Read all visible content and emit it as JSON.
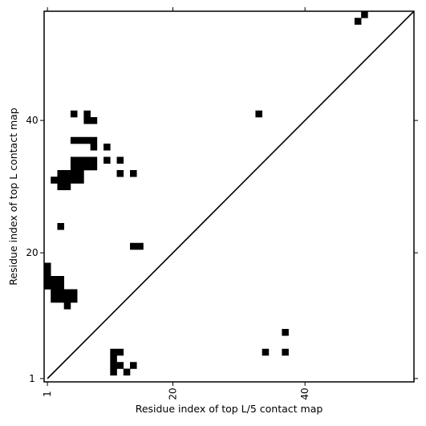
{
  "chart_data": {
    "type": "scatter",
    "title": "",
    "xlabel": "Residue index of top L/5 contact map",
    "ylabel": "Residue index of top L contact map",
    "xlim": [
      0.5,
      56.5
    ],
    "ylim": [
      0.5,
      56.5
    ],
    "xticks": [
      1,
      20,
      40
    ],
    "yticks": [
      1,
      20,
      40
    ],
    "marker": "square",
    "grid": false,
    "diagonal_line": true,
    "colors": {
      "marker": "#000000",
      "axes": "#000000",
      "background": "#ffffff"
    },
    "upper_series": {
      "name": "",
      "points": [
        [
          49,
          56
        ],
        [
          48,
          55
        ],
        [
          33,
          41
        ],
        [
          5,
          41
        ],
        [
          7,
          41
        ],
        [
          7,
          40
        ],
        [
          8,
          40
        ],
        [
          5,
          37
        ],
        [
          6,
          37
        ],
        [
          7,
          37
        ],
        [
          8,
          37
        ],
        [
          8,
          36
        ],
        [
          10,
          36
        ],
        [
          5,
          34
        ],
        [
          6,
          34
        ],
        [
          7,
          34
        ],
        [
          8,
          34
        ],
        [
          10,
          34
        ],
        [
          12,
          34
        ],
        [
          5,
          33
        ],
        [
          6,
          33
        ],
        [
          7,
          33
        ],
        [
          8,
          33
        ],
        [
          3,
          32
        ],
        [
          4,
          32
        ],
        [
          5,
          32
        ],
        [
          6,
          32
        ],
        [
          12,
          32
        ],
        [
          14,
          32
        ],
        [
          2,
          31
        ],
        [
          3,
          31
        ],
        [
          4,
          31
        ],
        [
          5,
          31
        ],
        [
          6,
          31
        ],
        [
          3,
          30
        ],
        [
          4,
          30
        ],
        [
          3,
          24
        ],
        [
          14,
          21
        ],
        [
          15,
          21
        ],
        [
          1,
          18
        ],
        [
          1,
          17
        ],
        [
          1,
          16
        ],
        [
          2,
          16
        ],
        [
          3,
          16
        ],
        [
          1,
          15
        ],
        [
          2,
          15
        ],
        [
          3,
          15
        ],
        [
          2,
          14
        ],
        [
          3,
          14
        ],
        [
          4,
          14
        ],
        [
          5,
          14
        ],
        [
          2,
          13
        ],
        [
          3,
          13
        ],
        [
          4,
          13
        ],
        [
          5,
          13
        ],
        [
          4,
          12
        ]
      ]
    },
    "lower_series": {
      "name": "",
      "points": [
        [
          37,
          8
        ],
        [
          34,
          5
        ],
        [
          37,
          5
        ],
        [
          11,
          5
        ],
        [
          12,
          5
        ],
        [
          11,
          4
        ],
        [
          11,
          3
        ],
        [
          12,
          3
        ],
        [
          14,
          3
        ],
        [
          11,
          2
        ],
        [
          13,
          2
        ]
      ]
    }
  }
}
